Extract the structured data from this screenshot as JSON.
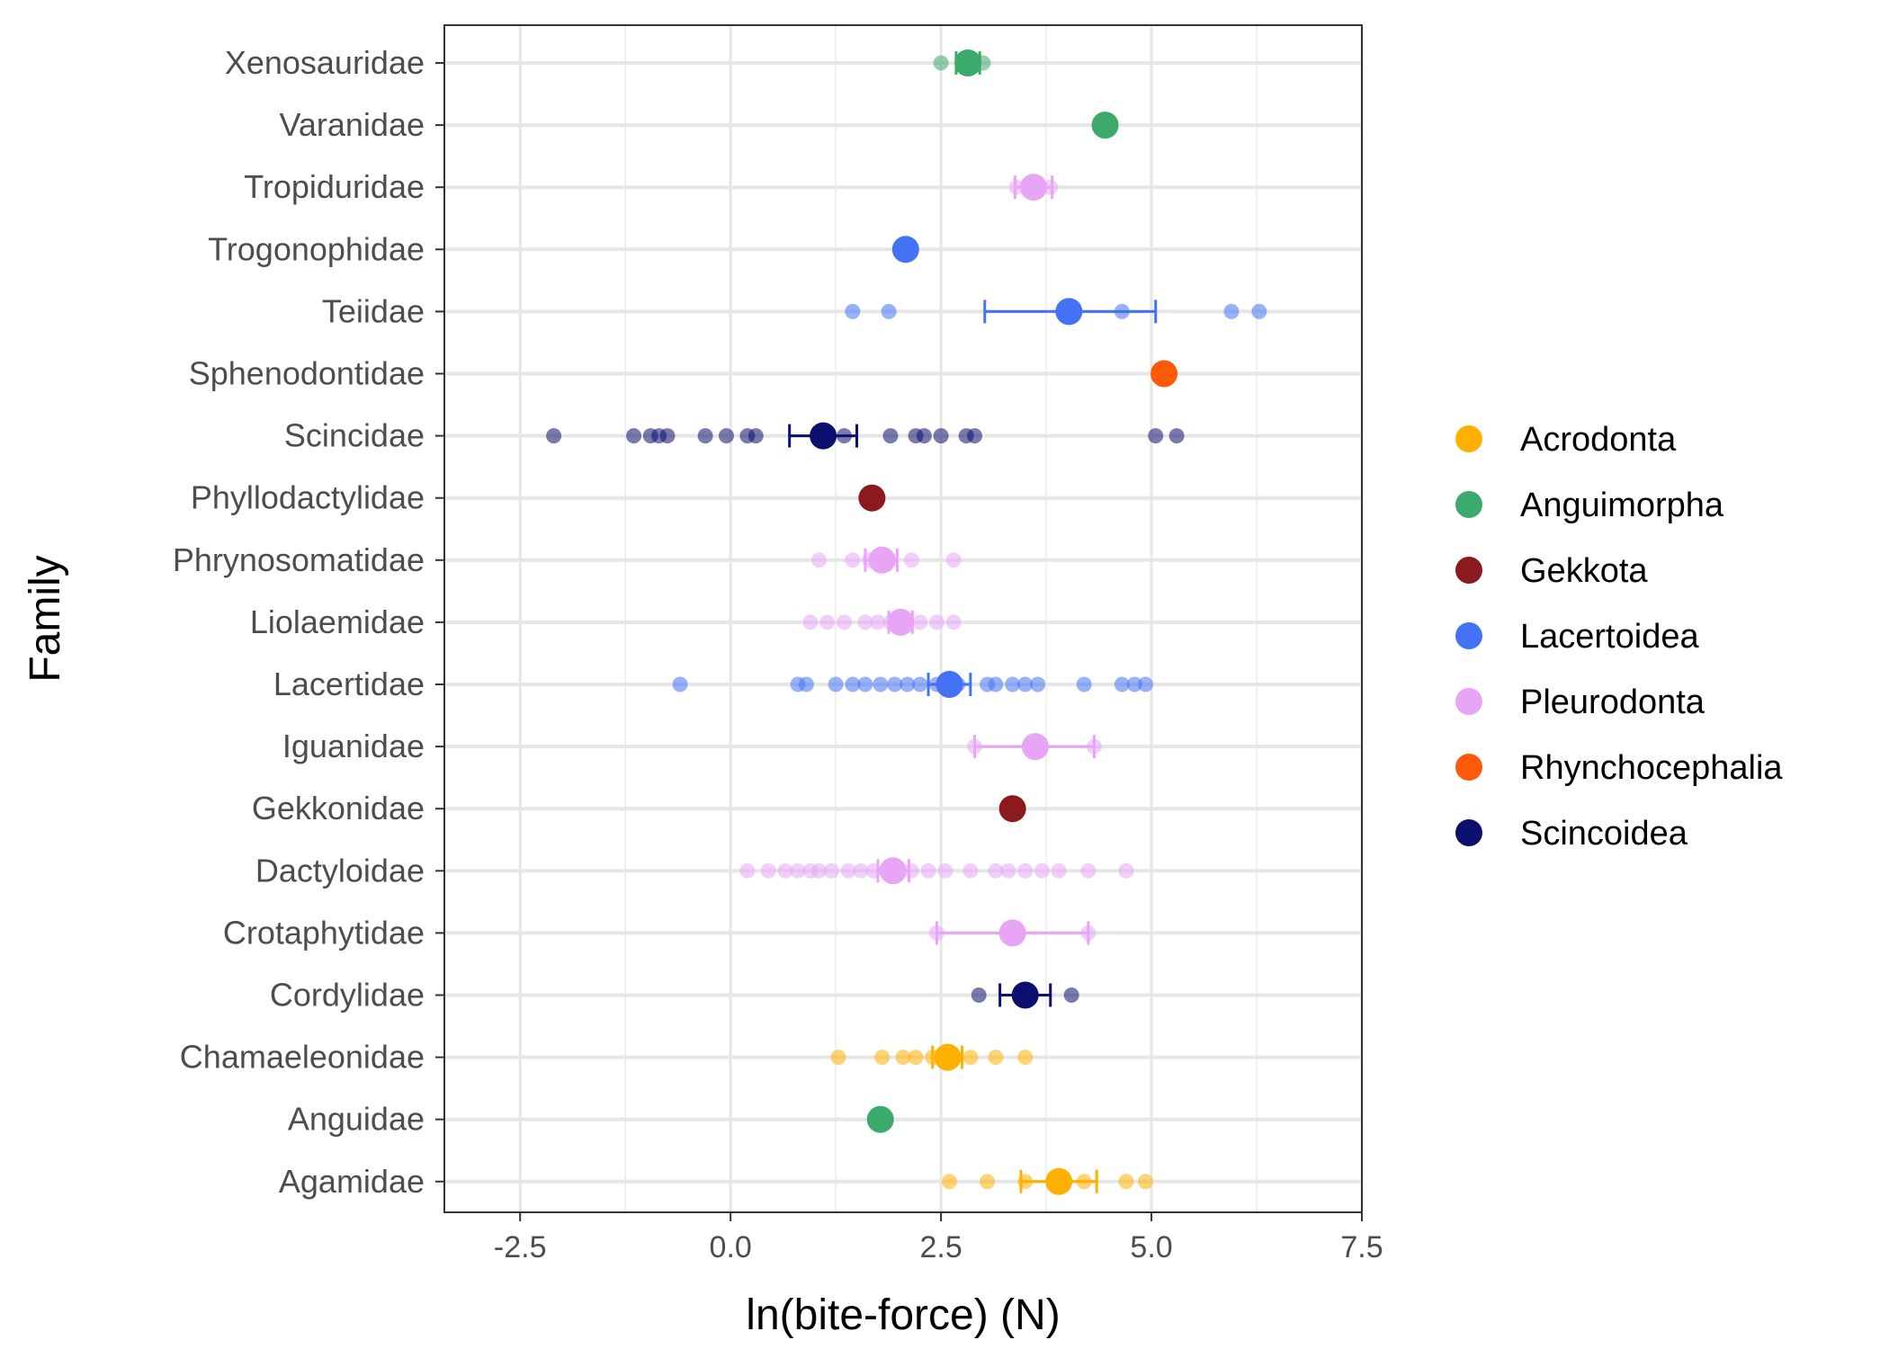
{
  "chart_data": {
    "type": "scatter",
    "title": "",
    "xlabel": "ln(bite-force) (N)",
    "ylabel": "Family",
    "xlim": [
      -3.4,
      7.5
    ],
    "xticks": [
      -2.5,
      0.0,
      2.5,
      5.0,
      7.5
    ],
    "xtick_labels": [
      "-2.5",
      "0.0",
      "2.5",
      "5.0",
      "7.5"
    ],
    "grid": true,
    "legend_position": "right",
    "categories": [
      "Agamidae",
      "Anguidae",
      "Chamaeleonidae",
      "Cordylidae",
      "Crotaphytidae",
      "Dactyloidae",
      "Gekkonidae",
      "Iguanidae",
      "Lacertidae",
      "Liolaemidae",
      "Phrynosomatidae",
      "Phyllodactylidae",
      "Scincidae",
      "Sphenodontidae",
      "Teiidae",
      "Trogonophidae",
      "Tropiduridae",
      "Varanidae",
      "Xenosauridae"
    ],
    "series": [
      {
        "name": "Acrodonta",
        "color": "#FFB000"
      },
      {
        "name": "Anguimorpha",
        "color": "#3CAA6A"
      },
      {
        "name": "Gekkota",
        "color": "#8B1A1F"
      },
      {
        "name": "Lacertoidea",
        "color": "#4472F5"
      },
      {
        "name": "Pleurodonta",
        "color": "#E8A5F6"
      },
      {
        "name": "Rhynchocephalia",
        "color": "#FF5A0A"
      },
      {
        "name": "Scincoidea",
        "color": "#0B0F6E"
      }
    ],
    "families": [
      {
        "family": "Agamidae",
        "clade": "Acrodonta",
        "mean": 3.9,
        "err_low": 3.45,
        "err_high": 4.35,
        "points": [
          2.6,
          3.05,
          3.5,
          3.85,
          4.2,
          4.7,
          4.93
        ]
      },
      {
        "family": "Anguidae",
        "clade": "Anguimorpha",
        "mean": 1.78,
        "err_low": null,
        "err_high": null,
        "points": []
      },
      {
        "family": "Chamaeleonidae",
        "clade": "Acrodonta",
        "mean": 2.58,
        "err_low": 2.4,
        "err_high": 2.75,
        "points": [
          1.28,
          1.8,
          2.05,
          2.2,
          2.4,
          2.6,
          2.85,
          3.15,
          3.5
        ]
      },
      {
        "family": "Cordylidae",
        "clade": "Scincoidea",
        "mean": 3.5,
        "err_low": 3.2,
        "err_high": 3.8,
        "points": [
          2.95,
          3.5,
          4.05
        ]
      },
      {
        "family": "Crotaphytidae",
        "clade": "Pleurodonta",
        "mean": 3.35,
        "err_low": 2.45,
        "err_high": 4.25,
        "points": [
          2.45,
          4.25
        ]
      },
      {
        "family": "Dactyloidae",
        "clade": "Pleurodonta",
        "mean": 1.93,
        "err_low": 1.75,
        "err_high": 2.12,
        "points": [
          0.2,
          0.45,
          0.65,
          0.8,
          0.95,
          1.05,
          1.2,
          1.4,
          1.55,
          1.7,
          1.85,
          2.0,
          2.15,
          2.35,
          2.55,
          2.85,
          3.15,
          3.3,
          3.5,
          3.7,
          3.9,
          4.25,
          4.7
        ]
      },
      {
        "family": "Gekkonidae",
        "clade": "Gekkota",
        "mean": 3.35,
        "err_low": null,
        "err_high": null,
        "points": []
      },
      {
        "family": "Iguanidae",
        "clade": "Pleurodonta",
        "mean": 3.62,
        "err_low": 2.9,
        "err_high": 4.32,
        "points": [
          2.9,
          4.32
        ]
      },
      {
        "family": "Lacertidae",
        "clade": "Lacertoidea",
        "mean": 2.6,
        "err_low": 2.35,
        "err_high": 2.85,
        "points": [
          -0.6,
          0.8,
          0.9,
          1.25,
          1.45,
          1.6,
          1.78,
          1.95,
          2.1,
          2.25,
          2.45,
          2.7,
          3.05,
          3.15,
          3.35,
          3.5,
          3.65,
          4.2,
          4.65,
          4.8,
          4.93
        ]
      },
      {
        "family": "Liolaemidae",
        "clade": "Pleurodonta",
        "mean": 2.02,
        "err_low": 1.88,
        "err_high": 2.16,
        "points": [
          0.95,
          1.15,
          1.35,
          1.6,
          1.75,
          1.9,
          2.05,
          2.25,
          2.45,
          2.65
        ]
      },
      {
        "family": "Phrynosomatidae",
        "clade": "Pleurodonta",
        "mean": 1.8,
        "err_low": 1.6,
        "err_high": 1.98,
        "points": [
          1.05,
          1.45,
          1.65,
          1.9,
          2.15,
          2.65
        ]
      },
      {
        "family": "Phyllodactylidae",
        "clade": "Gekkota",
        "mean": 1.68,
        "err_low": null,
        "err_high": null,
        "points": []
      },
      {
        "family": "Scincidae",
        "clade": "Scincoidea",
        "mean": 1.1,
        "err_low": 0.7,
        "err_high": 1.5,
        "points": [
          -2.1,
          -1.15,
          -0.95,
          -0.85,
          -0.75,
          -0.3,
          -0.05,
          0.2,
          0.3,
          1.35,
          1.9,
          2.2,
          2.3,
          2.5,
          2.8,
          2.9,
          5.05,
          5.3
        ]
      },
      {
        "family": "Sphenodontidae",
        "clade": "Rhynchocephalia",
        "mean": 5.15,
        "err_low": null,
        "err_high": null,
        "points": []
      },
      {
        "family": "Teiidae",
        "clade": "Lacertoidea",
        "mean": 4.02,
        "err_low": 3.02,
        "err_high": 5.05,
        "points": [
          1.45,
          1.88,
          4.65,
          5.95,
          6.28
        ]
      },
      {
        "family": "Trogonophidae",
        "clade": "Lacertoidea",
        "mean": 2.08,
        "err_low": null,
        "err_high": null,
        "points": []
      },
      {
        "family": "Tropiduridae",
        "clade": "Pleurodonta",
        "mean": 3.6,
        "err_low": 3.38,
        "err_high": 3.82,
        "points": [
          3.4,
          3.6,
          3.8
        ]
      },
      {
        "family": "Varanidae",
        "clade": "Anguimorpha",
        "mean": 4.45,
        "err_low": null,
        "err_high": null,
        "points": []
      },
      {
        "family": "Xenosauridae",
        "clade": "Anguimorpha",
        "mean": 2.82,
        "err_low": 2.68,
        "err_high": 2.96,
        "points": [
          2.5,
          2.8,
          3.0
        ]
      }
    ]
  }
}
